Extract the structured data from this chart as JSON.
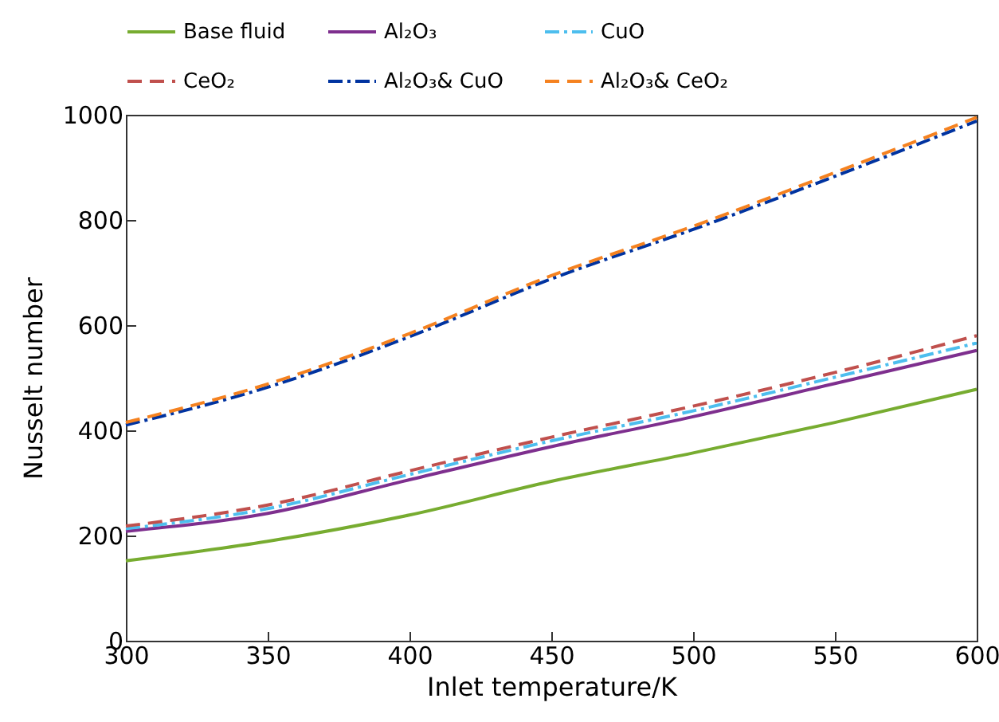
{
  "chart_data": {
    "type": "line",
    "xlabel": "Inlet temperature/K",
    "ylabel": "Nusselt number",
    "x": [
      300,
      350,
      400,
      450,
      500,
      550,
      600
    ],
    "series": [
      {
        "name": "Base fluid",
        "color": "#77ac30",
        "line_style": "solid",
        "values": [
          152,
          189,
          239,
          303,
          357,
          415,
          478
        ]
      },
      {
        "name": "Al₂O₃",
        "color": "#7e2f8e",
        "line_style": "solid",
        "values": [
          208,
          242,
          306,
          369,
          426,
          489,
          552
        ]
      },
      {
        "name": "CuO",
        "color": "#4dbeee",
        "line_style": "dashdot",
        "values": [
          213,
          251,
          316,
          380,
          437,
          501,
          566
        ]
      },
      {
        "name": "CeO₂",
        "color": "#c0504d",
        "line_style": "dashed",
        "values": [
          218,
          258,
          323,
          387,
          446,
          510,
          580
        ]
      },
      {
        "name": "Al₂O₃& CuO",
        "color": "#0033a0",
        "line_style": "dashdot",
        "values": [
          410,
          482,
          578,
          688,
          782,
          883,
          988
        ]
      },
      {
        "name": "Al₂O₃& CeO₂",
        "color": "#f58220",
        "line_style": "dashed",
        "values": [
          415,
          488,
          584,
          694,
          788,
          890,
          995
        ]
      }
    ],
    "xlim": [
      300,
      600
    ],
    "xticks": [
      300,
      350,
      400,
      450,
      500,
      550,
      600
    ],
    "ylim": [
      0,
      1000
    ],
    "yticks": [
      0,
      200,
      400,
      600,
      800,
      1000
    ],
    "grid": false,
    "legend": "top"
  }
}
